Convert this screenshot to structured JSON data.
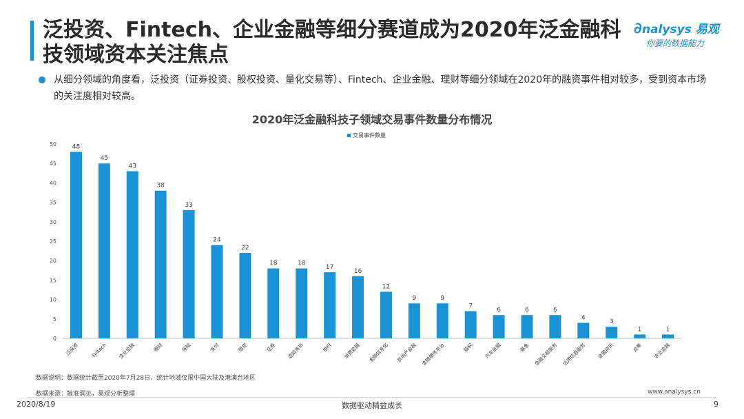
{
  "title": "泛投资、Fintech、企业金融等细分赛道成为2020年泛金融科技领域资本关注焦点",
  "logo": {
    "main": "nalysys 易观",
    "sub": "你要的数据能力"
  },
  "intro": "从细分领域的角度看，泛投资（证券投资、股权投资、量化交易等）、Fintech、企业金融、理财等细分领域在2020年的融资事件相对较多，受到资本市场的关注度相对较高。",
  "chart_data": {
    "type": "bar",
    "title": "2020年泛金融科技子领域交易事件数量分布情况",
    "legend": "交易事件数量",
    "legend_position": "top-center",
    "categories": [
      "泛投资",
      "Fintech",
      "企业金融",
      "理财",
      "保险",
      "支付",
      "借贷",
      "证券",
      "虚拟货币",
      "银行",
      "消费金融",
      "金融信息化",
      "房地产金融",
      "金融服务平台",
      "股权",
      "汽车金融",
      "基金",
      "金融交易服务",
      "信用信息服务",
      "金融资讯",
      "众筹",
      "农业金融"
    ],
    "values": [
      48,
      45,
      43,
      38,
      33,
      24,
      22,
      18,
      18,
      17,
      16,
      12,
      9,
      9,
      7,
      6,
      6,
      6,
      4,
      3,
      1,
      1
    ],
    "ylim": [
      0,
      50
    ],
    "yticks": [
      0,
      5,
      10,
      15,
      20,
      25,
      30,
      35,
      40,
      45,
      50
    ],
    "color": "#1a93d6",
    "grid": false
  },
  "note": "数据说明：数据统计截至2020年7月28日，统计地域仅限中国大陆及港澳台地区",
  "source": "数据来源：鲸准洞见，易观分析整理",
  "site": "www.analysys.cn",
  "footer": {
    "date": "2020/8/19",
    "slogan": "数据驱动精益成长",
    "page": "9"
  }
}
